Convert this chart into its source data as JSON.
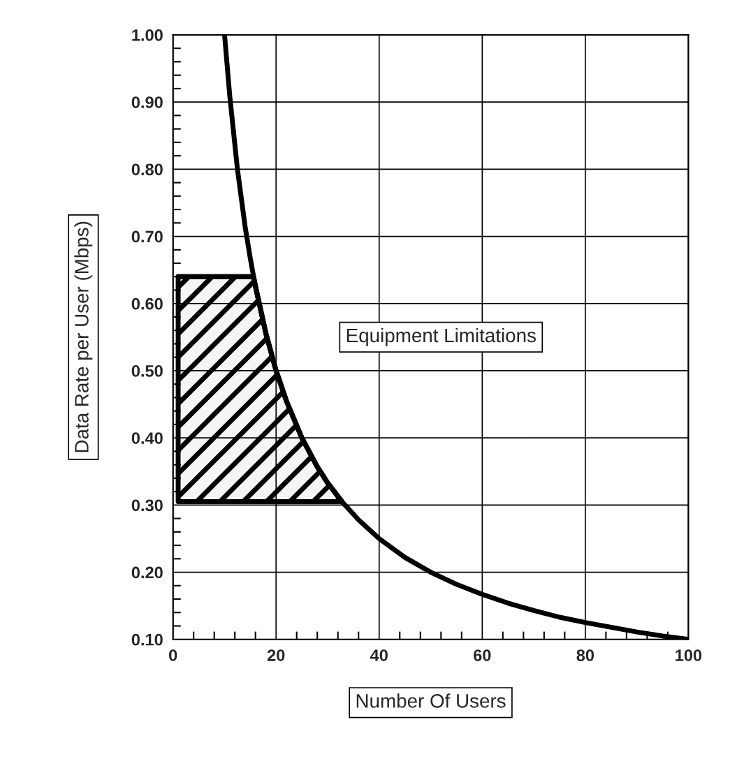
{
  "chart_data": {
    "type": "line",
    "xlabel": "Number Of Users",
    "ylabel": "Data Rate per User (Mbps)",
    "xlim": [
      0,
      100
    ],
    "ylim": [
      0.1,
      1.0
    ],
    "xticks": [
      0,
      20,
      40,
      60,
      80,
      100
    ],
    "yticks": [
      {
        "value": 0.1,
        "label": "0.10"
      },
      {
        "value": 0.2,
        "label": "0.20"
      },
      {
        "value": 0.3,
        "label": "0.30"
      },
      {
        "value": 0.4,
        "label": "0.40"
      },
      {
        "value": 0.5,
        "label": "0.50"
      },
      {
        "value": 0.6,
        "label": "0.60"
      },
      {
        "value": 0.7,
        "label": "0.70"
      },
      {
        "value": 0.8,
        "label": "0.80"
      },
      {
        "value": 0.9,
        "label": "0.90"
      },
      {
        "value": 1.0,
        "label": "1.00"
      }
    ],
    "grid": true,
    "marker": "none",
    "line_style": "solid",
    "series": [
      {
        "color": "#000000",
        "x": [
          10,
          11,
          12.5,
          14,
          15,
          16,
          18,
          20,
          22,
          25,
          28,
          30,
          33,
          36,
          40,
          45,
          50,
          55,
          60,
          65,
          70,
          75,
          80,
          85,
          90,
          95,
          100
        ],
        "values": [
          1.0,
          0.91,
          0.8,
          0.714,
          0.667,
          0.625,
          0.556,
          0.5,
          0.455,
          0.4,
          0.357,
          0.333,
          0.303,
          0.278,
          0.25,
          0.222,
          0.2,
          0.182,
          0.167,
          0.154,
          0.143,
          0.133,
          0.125,
          0.118,
          0.111,
          0.105,
          0.1
        ]
      },
      {
        "type": "line",
        "color": "#000000",
        "x": [
          1,
          15.6,
          18,
          20,
          22,
          25,
          28,
          30,
          32.8
        ],
        "values": [
          0.64,
          0.64,
          0.556,
          0.5,
          0.455,
          0.4,
          0.357,
          0.333,
          0.305
        ],
        "lower": [
          0.305,
          0.305,
          0.305,
          0.305,
          0.305,
          0.305,
          0.305,
          0.305,
          0.305
        ],
        "upper": [
          0.64,
          0.64,
          0.556,
          0.5,
          0.455,
          0.4,
          0.357,
          0.333,
          0.305
        ]
      }
    ],
    "annotations": [
      "Equipment Limitations"
    ]
  }
}
